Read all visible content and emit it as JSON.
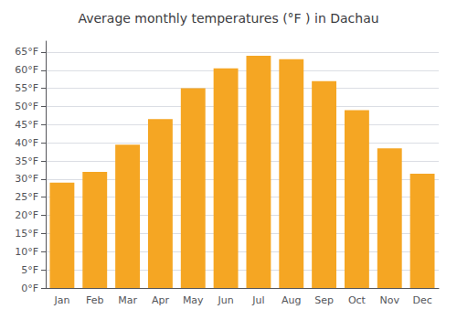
{
  "chart_data": {
    "type": "bar",
    "title": "Average monthly temperatures (°F ) in Dachau",
    "categories": [
      "Jan",
      "Feb",
      "Mar",
      "Apr",
      "May",
      "Jun",
      "Jul",
      "Aug",
      "Sep",
      "Oct",
      "Nov",
      "Dec"
    ],
    "values": [
      29,
      32,
      39.5,
      46.5,
      55,
      60.5,
      64,
      63,
      57,
      49,
      38.5,
      31.5
    ],
    "color": "#F5A623",
    "ylim": [
      0,
      68
    ],
    "yticks": [
      {
        "value": 0,
        "label": "0°F"
      },
      {
        "value": 5,
        "label": "5°F"
      },
      {
        "value": 10,
        "label": "10°F"
      },
      {
        "value": 15,
        "label": "15°F"
      },
      {
        "value": 20,
        "label": "20°F"
      },
      {
        "value": 25,
        "label": "25°F"
      },
      {
        "value": 30,
        "label": "30°F"
      },
      {
        "value": 35,
        "label": "35°F"
      },
      {
        "value": 40,
        "label": "40°F"
      },
      {
        "value": 45,
        "label": "45°F"
      },
      {
        "value": 50,
        "label": "50°F"
      },
      {
        "value": 55,
        "label": "55°F"
      },
      {
        "value": 60,
        "label": "60°F"
      },
      {
        "value": 65,
        "label": "65°F"
      }
    ],
    "grid": true
  }
}
